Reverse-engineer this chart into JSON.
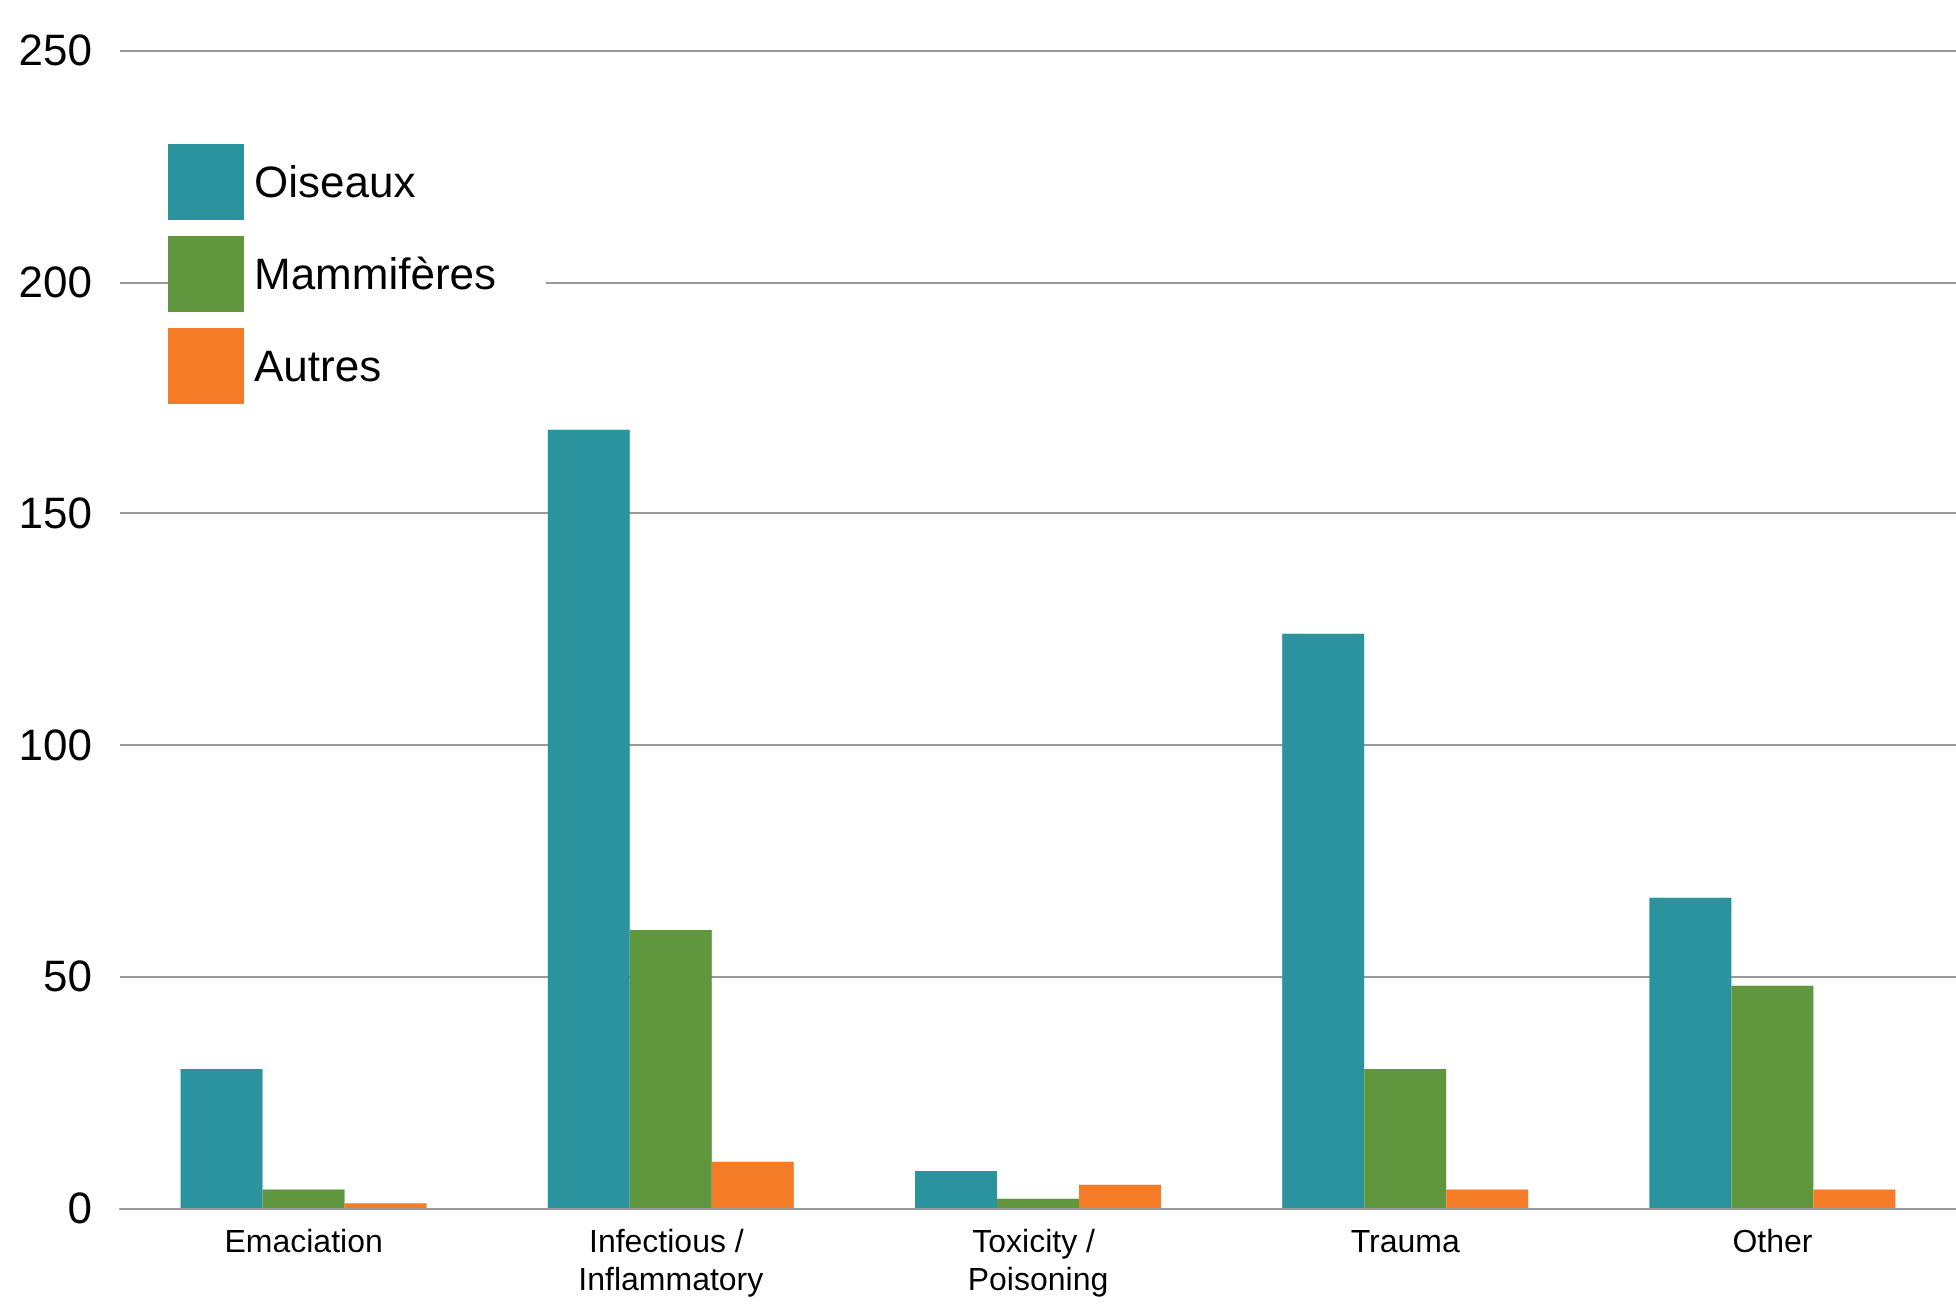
{
  "chart_data": {
    "type": "bar",
    "categories": [
      "Emaciation",
      "Infectious / Inflammatory",
      "Toxicity / Poisoning",
      "Trauma",
      "Other"
    ],
    "series": [
      {
        "name": "Oiseaux",
        "color": "#2a939e",
        "values": [
          30,
          168,
          8,
          124,
          67
        ]
      },
      {
        "name": "Mammifères",
        "color": "#5f963e",
        "values": [
          4,
          60,
          2,
          30,
          48
        ]
      },
      {
        "name": "Autres",
        "color": "#f47c27",
        "values": [
          1,
          10,
          5,
          4,
          4
        ]
      }
    ],
    "ylim": [
      0,
      250
    ],
    "yticks": [
      0,
      50,
      100,
      150,
      200,
      250
    ],
    "grid": "y",
    "legend": "top left"
  }
}
